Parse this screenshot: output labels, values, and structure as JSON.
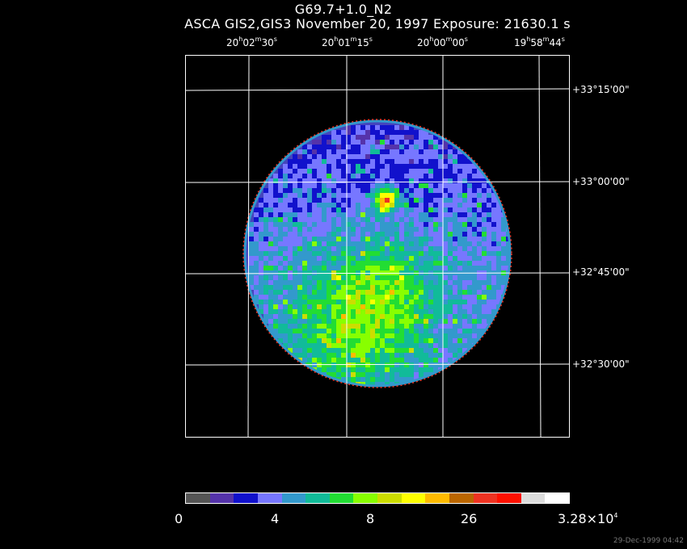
{
  "header": {
    "title": "G69.7+1.0_N2",
    "subtitle": "ASCA GIS2,GIS3 November 20, 1997 Exposure: 21630.1 s"
  },
  "ra_labels": [
    {
      "h": "20",
      "m": "02",
      "s": "30"
    },
    {
      "h": "20",
      "m": "01",
      "s": "15"
    },
    {
      "h": "20",
      "m": "00",
      "s": "00"
    },
    {
      "h": "19",
      "m": "58",
      "s": "44"
    }
  ],
  "dec_labels": [
    "+33°15'00\"",
    "+33°00'00\"",
    "+32°45'00\"",
    "+32°30'00\""
  ],
  "colorbar": {
    "colors": [
      "#555555",
      "#5533aa",
      "#1111cc",
      "#7777ff",
      "#3399cc",
      "#11bb99",
      "#22dd33",
      "#88ff00",
      "#ccdd00",
      "#ffff00",
      "#ffbb00",
      "#bb6600",
      "#ee3322",
      "#ff1100",
      "#dddddd",
      "#ffffff"
    ],
    "tick_labels": [
      "0",
      "4",
      "8",
      "26",
      "3.28×10"
    ],
    "max_exponent": "4"
  },
  "footer": {
    "timestamp": "29-Dec-1999 04:42"
  }
}
